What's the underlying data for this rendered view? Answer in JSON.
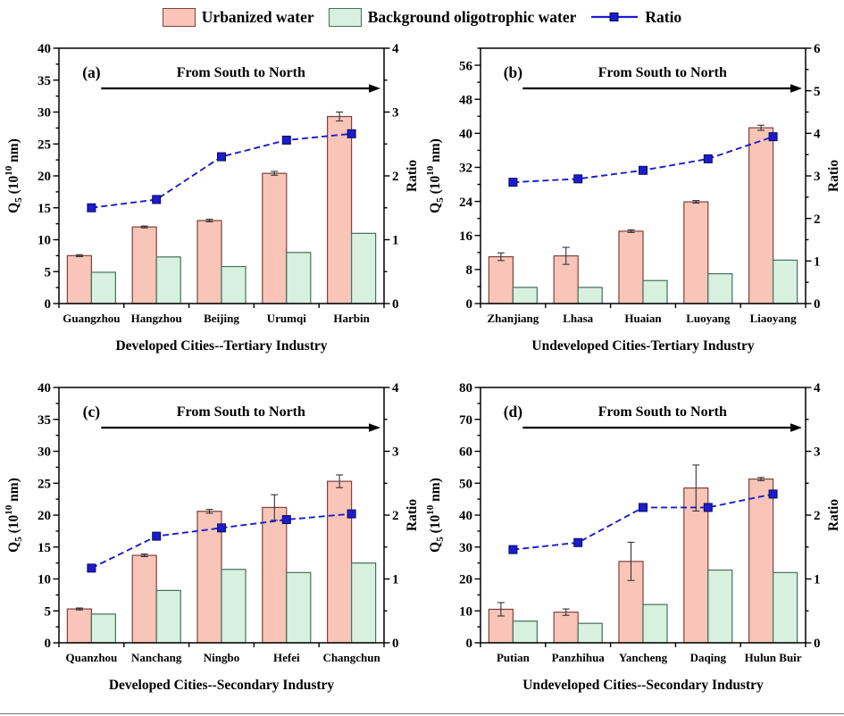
{
  "legend": {
    "items": [
      {
        "label": "Urbanized water"
      },
      {
        "label": "Background oligotrophic water"
      },
      {
        "label": "Ratio"
      }
    ]
  },
  "colors": {
    "urbanized_fill": "#F8C5B8",
    "urbanized_stroke": "#7E423C",
    "background_fill": "#D7F0DF",
    "background_stroke": "#46705C",
    "ratio_line": "#1C1CCB",
    "ratio_marker_stroke": "#0A0A66",
    "axis": "#000000",
    "error_bar": "#333333"
  },
  "axis_labels": {
    "left_parts": {
      "pre": "Q",
      "sub": "5",
      "mid": " (10",
      "sup": "10",
      "post": " nm)"
    },
    "left_plain": "Q5 (10^10 nm)",
    "right": "Ratio"
  },
  "chart_data": {
    "type": "bar",
    "note": "grouped bars with secondary-axis line series, 2x2 panels",
    "shared": {
      "legend": [
        "Urbanized water",
        "Background oligotrophic water",
        "Ratio"
      ],
      "ylabel_left": "Q5 (10^10 nm)",
      "ylabel_right": "Ratio",
      "grid": "off",
      "legend_position": "top-center"
    },
    "panels": [
      {
        "panel": "(a)",
        "annotation": "From South to North",
        "xlabel": "Developed Cities--Tertiary Industry",
        "categories": [
          "Guangzhou",
          "Hangzhou",
          "Beijing",
          "Urumqi",
          "Harbin"
        ],
        "ylim_left": [
          0,
          40
        ],
        "ytick_left": 5,
        "ylim_right": [
          0,
          4
        ],
        "ytick_right": 1,
        "series": [
          {
            "name": "Urbanized water",
            "axis": "left",
            "values": [
              7.5,
              12.0,
              13.0,
              20.4,
              29.3
            ],
            "errors": [
              0.15,
              0.15,
              0.2,
              0.3,
              0.7
            ]
          },
          {
            "name": "Background oligotrophic water",
            "axis": "left",
            "values": [
              4.9,
              7.3,
              5.8,
              8.0,
              11.0
            ]
          },
          {
            "name": "Ratio",
            "axis": "right",
            "values": [
              1.5,
              1.63,
              2.3,
              2.56,
              2.66
            ]
          }
        ]
      },
      {
        "panel": "(b)",
        "annotation": "From South to North",
        "xlabel": "Undeveloped Cities-Tertiary Industry",
        "categories": [
          "Zhanjiang",
          "Lhasa",
          "Huaian",
          "Luoyang",
          "Liaoyang"
        ],
        "ylim_left": [
          0,
          60
        ],
        "ytick_left": 8,
        "ylim_right": [
          0,
          6
        ],
        "ytick_right": 1,
        "series": [
          {
            "name": "Urbanized water",
            "axis": "left",
            "values": [
              11.0,
              11.2,
              17.0,
              23.9,
              41.3
            ],
            "errors": [
              0.9,
              2.0,
              0.3,
              0.3,
              0.6
            ]
          },
          {
            "name": "Background oligotrophic water",
            "axis": "left",
            "values": [
              3.8,
              3.8,
              5.4,
              7.0,
              10.2
            ]
          },
          {
            "name": "Ratio",
            "axis": "right",
            "values": [
              2.85,
              2.93,
              3.13,
              3.4,
              3.92
            ]
          }
        ]
      },
      {
        "panel": "(c)",
        "annotation": "From South to North",
        "xlabel": "Developed Cities--Secondary Industry",
        "categories": [
          "Quanzhou",
          "Nanchang",
          "Ningbo",
          "Hefei",
          "Changchun"
        ],
        "ylim_left": [
          0,
          40
        ],
        "ytick_left": 5,
        "ylim_right": [
          0,
          4
        ],
        "ytick_right": 1,
        "series": [
          {
            "name": "Urbanized water",
            "axis": "left",
            "values": [
              5.3,
              13.7,
              20.6,
              21.2,
              25.3
            ],
            "errors": [
              0.15,
              0.2,
              0.3,
              2.0,
              1.0
            ]
          },
          {
            "name": "Background oligotrophic water",
            "axis": "left",
            "values": [
              4.5,
              8.2,
              11.5,
              11.0,
              12.5
            ]
          },
          {
            "name": "Ratio",
            "axis": "right",
            "values": [
              1.17,
              1.67,
              1.8,
              1.93,
              2.02
            ]
          }
        ]
      },
      {
        "panel": "(d)",
        "annotation": "From South to North",
        "xlabel": "Undeveloped Cities--Secondary Industry",
        "categories": [
          "Putian",
          "Panzhihua",
          "Yancheng",
          "Daqing",
          "Hulun Buir"
        ],
        "ylim_left": [
          0,
          80
        ],
        "ytick_left": 10,
        "ylim_right": [
          0,
          4
        ],
        "ytick_right": 1,
        "series": [
          {
            "name": "Urbanized water",
            "axis": "left",
            "values": [
              10.5,
              9.6,
              25.5,
              48.5,
              51.3
            ],
            "errors": [
              2.1,
              1.0,
              6.0,
              7.2,
              0.5
            ]
          },
          {
            "name": "Background oligotrophic water",
            "axis": "left",
            "values": [
              6.8,
              6.1,
              12.0,
              22.8,
              22.0
            ]
          },
          {
            "name": "Ratio",
            "axis": "right",
            "values": [
              1.46,
              1.57,
              2.12,
              2.12,
              2.33
            ]
          }
        ]
      }
    ]
  }
}
